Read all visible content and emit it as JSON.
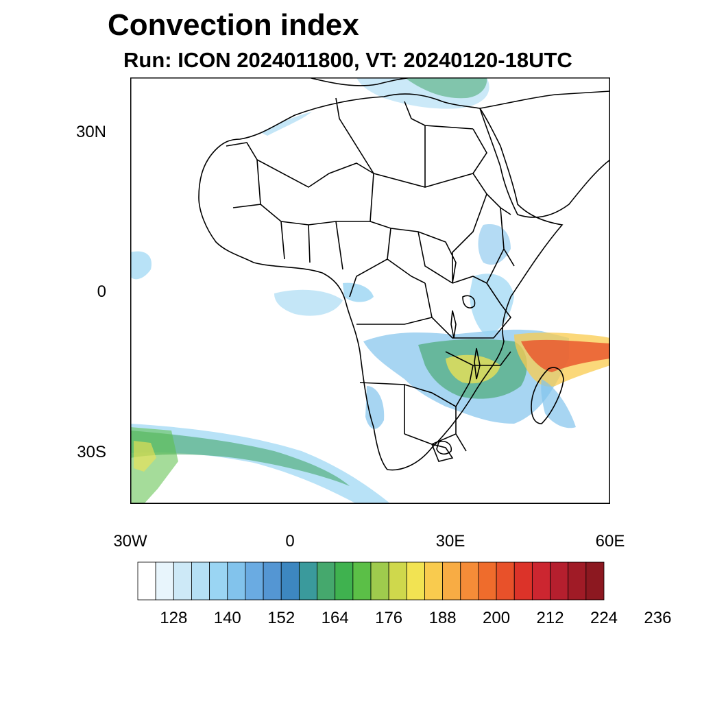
{
  "title": "Convection index",
  "subtitle": "Run: ICON 2024011800,  VT: 20240120-18UTC",
  "map": {
    "region": "Africa",
    "lon_range": [
      -30,
      60
    ],
    "lat_range": [
      -40,
      40
    ],
    "lat_labels": [
      "30N",
      "0",
      "30S"
    ],
    "lon_labels": [
      "30W",
      "0",
      "30E",
      "60E"
    ]
  },
  "colorbar": {
    "colors": [
      "#ffffff",
      "#e8f5fc",
      "#cde9f7",
      "#b5e0f5",
      "#9ad5f3",
      "#82c3ec",
      "#6aabe2",
      "#5496d3",
      "#3d87c0",
      "#3a9a9c",
      "#45a86d",
      "#3fb24f",
      "#5bbf47",
      "#9fcb4d",
      "#cfd84c",
      "#f2e352",
      "#f9cb4e",
      "#f8ac44",
      "#f58c38",
      "#ef6c2c",
      "#e8512a",
      "#dc3329",
      "#cc2630",
      "#b51f2e",
      "#a01b26",
      "#8c1820"
    ],
    "tick_labels": [
      "128",
      "140",
      "152",
      "164",
      "176",
      "188",
      "200",
      "212",
      "224",
      "236"
    ]
  }
}
